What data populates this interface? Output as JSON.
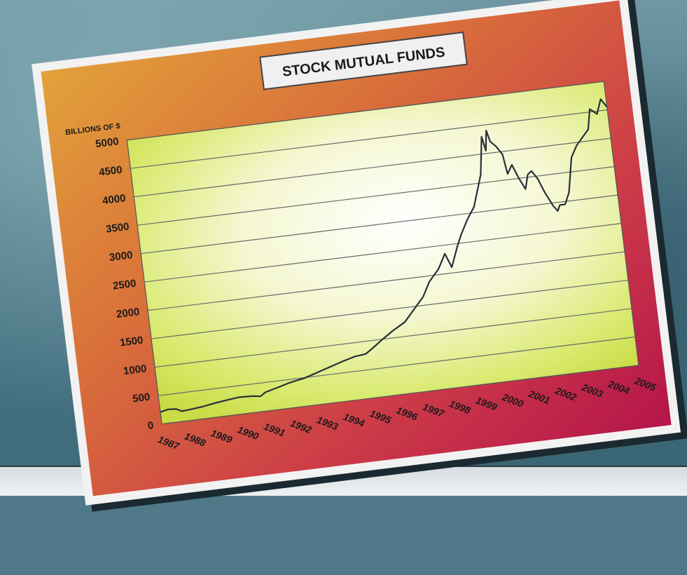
{
  "chart_data": {
    "type": "line",
    "title": "STOCK MUTUAL FUNDS",
    "ylabel": "BILLIONS OF $",
    "xlabel": "",
    "ylim": [
      0,
      5000
    ],
    "yticks": [
      "0",
      "500",
      "1000",
      "1500",
      "2000",
      "2500",
      "3000",
      "3500",
      "4000",
      "4500",
      "5000"
    ],
    "year_labels": [
      "1987",
      "1988",
      "1989",
      "1990",
      "1991",
      "1992",
      "1993",
      "1994",
      "1995",
      "1996",
      "1997",
      "1998",
      "1999",
      "2000",
      "2001",
      "2002",
      "2003",
      "2004",
      "2005"
    ],
    "grid": true,
    "series": [
      {
        "color": "#2a2e3a",
        "points": [
          [
            1987.0,
            210
          ],
          [
            1987.3,
            240
          ],
          [
            1987.6,
            230
          ],
          [
            1987.8,
            180
          ],
          [
            1988.2,
            195
          ],
          [
            1988.6,
            215
          ],
          [
            1989.0,
            245
          ],
          [
            1989.5,
            275
          ],
          [
            1990.0,
            300
          ],
          [
            1990.5,
            290
          ],
          [
            1990.8,
            270
          ],
          [
            1991.0,
            330
          ],
          [
            1991.5,
            390
          ],
          [
            1992.0,
            450
          ],
          [
            1992.5,
            490
          ],
          [
            1993.0,
            560
          ],
          [
            1993.5,
            630
          ],
          [
            1994.0,
            700
          ],
          [
            1994.5,
            760
          ],
          [
            1994.9,
            780
          ],
          [
            1995.2,
            870
          ],
          [
            1995.6,
            1000
          ],
          [
            1996.0,
            1120
          ],
          [
            1996.5,
            1250
          ],
          [
            1997.0,
            1500
          ],
          [
            1997.3,
            1650
          ],
          [
            1997.6,
            1900
          ],
          [
            1998.0,
            2100
          ],
          [
            1998.3,
            2350
          ],
          [
            1998.5,
            2100
          ],
          [
            1998.8,
            2450
          ],
          [
            1999.0,
            2650
          ],
          [
            1999.3,
            2900
          ],
          [
            1999.6,
            3100
          ],
          [
            2000.0,
            3650
          ],
          [
            2000.2,
            4300
          ],
          [
            2000.3,
            4050
          ],
          [
            2000.4,
            4400
          ],
          [
            2000.5,
            4200
          ],
          [
            2000.7,
            4100
          ],
          [
            2000.9,
            3950
          ],
          [
            2001.0,
            3600
          ],
          [
            2001.2,
            3750
          ],
          [
            2001.4,
            3500
          ],
          [
            2001.6,
            3300
          ],
          [
            2001.75,
            3550
          ],
          [
            2001.9,
            3600
          ],
          [
            2002.1,
            3450
          ],
          [
            2002.3,
            3200
          ],
          [
            2002.55,
            2950
          ],
          [
            2002.7,
            2850
          ],
          [
            2002.8,
            2950
          ],
          [
            2003.0,
            2950
          ],
          [
            2003.2,
            3150
          ],
          [
            2003.45,
            3750
          ],
          [
            2003.7,
            3950
          ],
          [
            2004.0,
            4100
          ],
          [
            2004.2,
            4200
          ],
          [
            2004.35,
            4550
          ],
          [
            2004.6,
            4450
          ],
          [
            2004.8,
            4700
          ],
          [
            2005.0,
            4550
          ]
        ]
      }
    ]
  }
}
